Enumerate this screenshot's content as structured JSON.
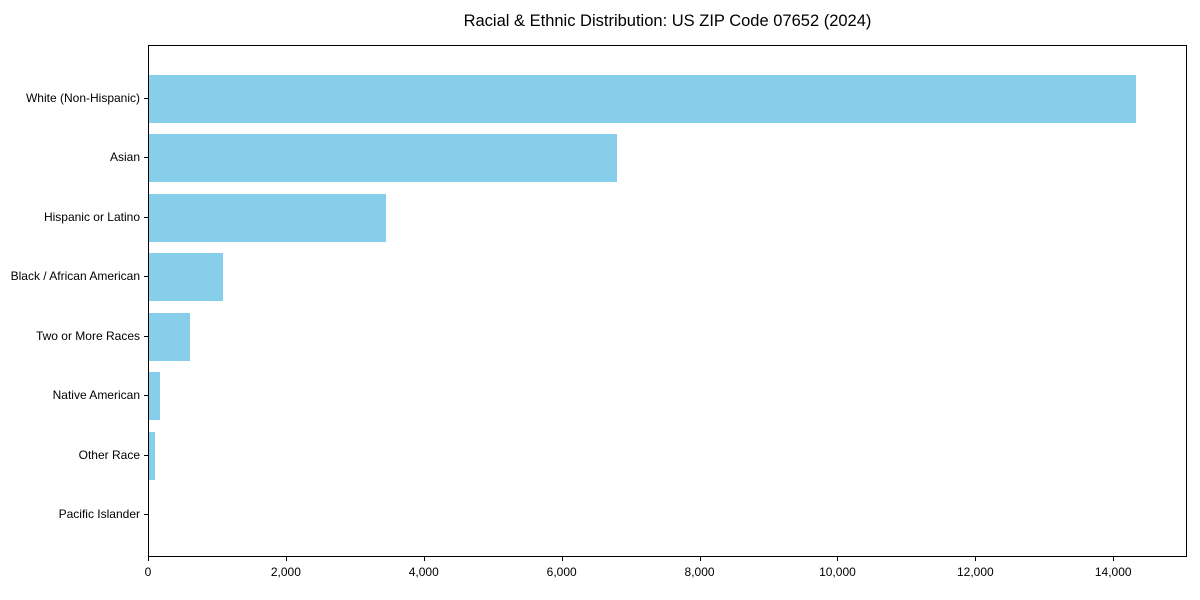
{
  "chart_data": {
    "type": "bar",
    "orientation": "horizontal",
    "title": "Racial & Ethnic Distribution: US ZIP Code 07652 (2024)",
    "categories": [
      "White (Non-Hispanic)",
      "Asian",
      "Hispanic or Latino",
      "Black / African American",
      "Two or More Races",
      "Native American",
      "Other Race",
      "Pacific Islander"
    ],
    "values": [
      14350,
      6800,
      3450,
      1080,
      600,
      160,
      80,
      0
    ],
    "xlabel": "",
    "ylabel": "",
    "xlim": [
      0,
      15070
    ],
    "x_ticks": [
      0,
      2000,
      4000,
      6000,
      8000,
      10000,
      12000,
      14000
    ],
    "x_tick_labels": [
      "0",
      "2,000",
      "4,000",
      "6,000",
      "8,000",
      "10,000",
      "12,000",
      "14,000"
    ],
    "bar_color": "#87CEEB",
    "background_color": "#ffffff",
    "text_color": "#000000",
    "grid": false,
    "legend": null
  }
}
